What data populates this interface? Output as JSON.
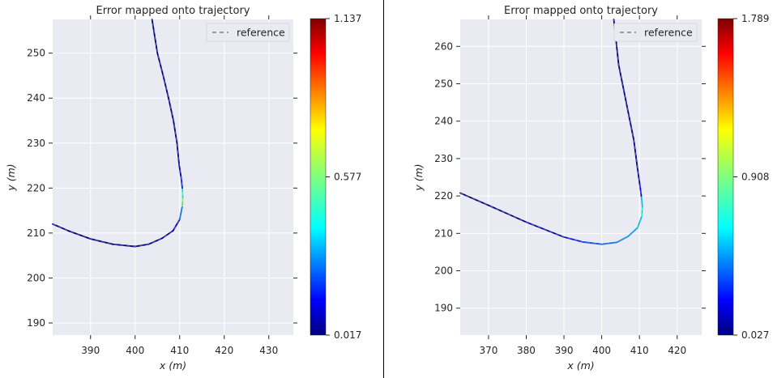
{
  "chart_data": [
    {
      "type": "line",
      "title": "Error mapped onto trajectory",
      "xlabel": "x (m)",
      "ylabel": "y (m)",
      "xlim": [
        381.5,
        435.5
      ],
      "ylim": [
        187.3,
        257.5
      ],
      "xticks": [
        390,
        400,
        410,
        420,
        430
      ],
      "yticks": [
        190,
        200,
        210,
        220,
        230,
        240,
        250
      ],
      "grid": true,
      "legend": {
        "entries": [
          "reference"
        ],
        "position": "top-right"
      },
      "series": [
        {
          "name": "reference",
          "style": "dashed",
          "color": "#808080",
          "x": [
            381.5,
            385,
            390,
            395,
            400,
            403,
            406,
            408.5,
            410,
            410.6,
            410.7,
            410.6,
            410.3,
            409.9,
            409.4,
            408.6,
            407.5,
            406.3,
            405,
            403.8
          ],
          "y": [
            212,
            210.5,
            208.7,
            207.5,
            207,
            207.5,
            208.8,
            210.5,
            213,
            216,
            218,
            220,
            222.5,
            225,
            230,
            235,
            240,
            245,
            250,
            257.5
          ]
        }
      ],
      "error_trajectory": {
        "x": [
          381.5,
          385,
          390,
          395,
          400,
          403,
          406,
          408.5,
          410,
          410.6,
          410.7,
          410.6,
          410.3,
          409.9,
          409.4,
          408.6,
          407.5,
          406.3,
          405,
          403.8
        ],
        "y": [
          212,
          210.5,
          208.7,
          207.5,
          207,
          207.5,
          208.8,
          210.5,
          213,
          216,
          218,
          220,
          222.5,
          225,
          230,
          235,
          240,
          245,
          250,
          257.5
        ],
        "error": [
          0.02,
          0.02,
          0.02,
          0.02,
          0.02,
          0.03,
          0.03,
          0.05,
          0.12,
          0.45,
          0.7,
          0.3,
          0.08,
          0.05,
          0.04,
          0.03,
          0.03,
          0.02,
          0.02,
          0.02
        ]
      },
      "colorbar": {
        "min": 0.017,
        "mid": 0.577,
        "max": 1.137,
        "tick_labels": [
          "1.137",
          "0.577",
          "0.017"
        ],
        "colormap": "jet"
      }
    },
    {
      "type": "line",
      "title": "Error mapped onto trajectory",
      "xlabel": "x (m)",
      "ylabel": "y (m)",
      "xlim": [
        362.5,
        426.5
      ],
      "ylim": [
        182.8,
        267.2
      ],
      "xticks": [
        370,
        380,
        390,
        400,
        410,
        420
      ],
      "yticks": [
        190,
        200,
        210,
        220,
        230,
        240,
        250,
        260
      ],
      "grid": true,
      "legend": {
        "entries": [
          "reference"
        ],
        "position": "top-right"
      },
      "series": [
        {
          "name": "reference",
          "style": "dashed",
          "color": "#808080",
          "x": [
            362.5,
            370,
            380,
            390,
            395,
            400,
            404,
            407,
            409.5,
            410.6,
            410.8,
            410.5,
            410.1,
            409.4,
            408.5,
            407.5,
            406.5,
            405.5,
            404.5,
            403.2
          ],
          "y": [
            220.8,
            217.5,
            213,
            209,
            207.7,
            207.1,
            207.6,
            209.2,
            211.5,
            214.5,
            217,
            220,
            223,
            228,
            235,
            240,
            245,
            250,
            255,
            267.2
          ]
        }
      ],
      "error_trajectory": {
        "x": [
          362.5,
          370,
          380,
          390,
          395,
          400,
          404,
          407,
          409.5,
          410.6,
          410.8,
          410.5,
          410.1,
          409.4,
          408.5,
          407.5,
          406.5,
          405.5,
          404.5,
          403.2
        ],
        "y": [
          220.8,
          217.5,
          213,
          209,
          207.7,
          207.1,
          207.6,
          209.2,
          211.5,
          214.5,
          217,
          220,
          223,
          228,
          235,
          240,
          245,
          250,
          255,
          267.2
        ],
        "error": [
          0.03,
          0.04,
          0.05,
          0.2,
          0.35,
          0.4,
          0.45,
          0.55,
          0.5,
          0.7,
          0.8,
          0.4,
          0.1,
          0.06,
          0.05,
          0.05,
          0.04,
          0.04,
          0.03,
          0.03
        ]
      },
      "colorbar": {
        "min": 0.027,
        "mid": 0.908,
        "max": 1.789,
        "tick_labels": [
          "1.789",
          "0.908",
          "0.027"
        ],
        "colormap": "jet"
      }
    }
  ]
}
